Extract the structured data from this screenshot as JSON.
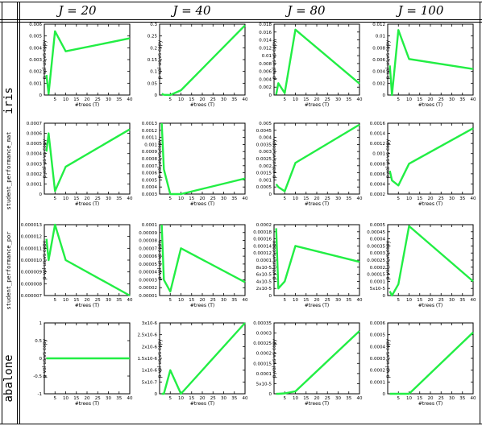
{
  "column_headers": [
    "J = 20",
    "J = 40",
    "J = 80",
    "J = 100"
  ],
  "row_labels": [
    "iris",
    "student_performance_mat",
    "student_performance_por",
    "abalone"
  ],
  "colors": {
    "line": "#22ee44",
    "frame": "#000000"
  },
  "chart_data": [
    {
      "type": "line",
      "row": 0,
      "col": 0,
      "xlabel": "#trees (T)",
      "ylabel": "p-val us vs copy",
      "xlim": [
        0,
        40
      ],
      "ylim": [
        0,
        0.006
      ],
      "yticks": [
        "0",
        "0.001",
        "0.002",
        "0.003",
        "0.004",
        "0.005",
        "0.006"
      ],
      "xticks": [
        "5",
        "10",
        "15",
        "20",
        "25",
        "30",
        "35",
        "40"
      ],
      "series": [
        {
          "x": [
            1,
            2,
            5,
            10,
            40
          ],
          "y": [
            0.0017,
            0.0001,
            0.0054,
            0.0037,
            0.0048
          ]
        }
      ]
    },
    {
      "type": "line",
      "row": 0,
      "col": 1,
      "xlabel": "#trees (T)",
      "ylabel": "p-val us vs copy",
      "xlim": [
        0,
        40
      ],
      "ylim": [
        0,
        0.3
      ],
      "yticks": [
        "0",
        "0.05",
        "0.1",
        "0.15",
        "0.2",
        "0.25",
        "0.3"
      ],
      "xticks": [
        "5",
        "10",
        "15",
        "20",
        "25",
        "30",
        "35",
        "40"
      ],
      "series": [
        {
          "x": [
            1,
            2,
            5,
            10,
            40
          ],
          "y": [
            0.005,
            0.001,
            0.0,
            0.02,
            0.295
          ]
        }
      ]
    },
    {
      "type": "line",
      "row": 0,
      "col": 2,
      "xlabel": "#trees (T)",
      "ylabel": "p-val us vs copy",
      "xlim": [
        0,
        40
      ],
      "ylim": [
        0,
        0.018
      ],
      "yticks": [
        "0",
        "0.002",
        "0.004",
        "0.006",
        "0.008",
        "0.01",
        "0.012",
        "0.014",
        "0.016",
        "0.018"
      ],
      "xticks": [
        "5",
        "10",
        "15",
        "20",
        "25",
        "30",
        "35",
        "40"
      ],
      "series": [
        {
          "x": [
            1,
            2,
            5,
            10,
            40
          ],
          "y": [
            0.0001,
            0.003,
            0.0005,
            0.0166,
            0.0029
          ]
        }
      ]
    },
    {
      "type": "line",
      "row": 0,
      "col": 3,
      "xlabel": "#trees (T)",
      "ylabel": "p-val us vs copy",
      "xlim": [
        0,
        40
      ],
      "ylim": [
        0,
        0.012
      ],
      "yticks": [
        "0",
        "0.002",
        "0.004",
        "0.006",
        "0.008",
        "0.01",
        "0.012"
      ],
      "xticks": [
        "5",
        "10",
        "15",
        "20",
        "25",
        "30",
        "35",
        "40"
      ],
      "series": [
        {
          "x": [
            1,
            2,
            5,
            10,
            40
          ],
          "y": [
            0.005,
            0.0,
            0.011,
            0.0061,
            0.0044
          ]
        }
      ]
    },
    {
      "type": "line",
      "row": 1,
      "col": 0,
      "xlabel": "#trees (T)",
      "ylabel": "p-val us vs copy",
      "xlim": [
        0,
        40
      ],
      "ylim": [
        0,
        0.0007
      ],
      "yticks": [
        "0",
        "0.0001",
        "0.0002",
        "0.0003",
        "0.0004",
        "0.0005",
        "0.0006",
        "0.0007"
      ],
      "xticks": [
        "5",
        "10",
        "15",
        "20",
        "25",
        "30",
        "35",
        "40"
      ],
      "series": [
        {
          "x": [
            1,
            2,
            5,
            10,
            40
          ],
          "y": [
            0.00042,
            0.0006,
            3e-05,
            0.00027,
            0.00064
          ]
        }
      ]
    },
    {
      "type": "line",
      "row": 1,
      "col": 1,
      "xlabel": "#trees (T)",
      "ylabel": "p-val us vs copy",
      "xlim": [
        0,
        40
      ],
      "ylim": [
        0.0003,
        0.0013
      ],
      "yticks": [
        "0.0003",
        "0.0004",
        "0.0005",
        "0.0006",
        "0.0007",
        "0.0008",
        "0.0009",
        "0.001",
        "0.0011",
        "0.0012",
        "0.0013"
      ],
      "xticks": [
        "5",
        "10",
        "15",
        "20",
        "25",
        "30",
        "35",
        "40"
      ],
      "series": [
        {
          "x": [
            1,
            2,
            5,
            10,
            40
          ],
          "y": [
            0.0013,
            0.00065,
            0.0003,
            0.0003,
            0.00052
          ]
        }
      ]
    },
    {
      "type": "line",
      "row": 1,
      "col": 2,
      "xlabel": "#trees (T)",
      "ylabel": "p-val us vs copy",
      "xlim": [
        0,
        40
      ],
      "ylim": [
        0,
        0.005
      ],
      "yticks": [
        "0",
        "0.0005",
        "0.001",
        "0.0015",
        "0.002",
        "0.0025",
        "0.003",
        "0.0035",
        "0.004",
        "0.0045",
        "0.005"
      ],
      "xticks": [
        "5",
        "10",
        "15",
        "20",
        "25",
        "30",
        "35",
        "40"
      ],
      "series": [
        {
          "x": [
            1,
            2,
            5,
            10,
            40
          ],
          "y": [
            0.0007,
            0.0005,
            0.0002,
            0.0022,
            0.0049
          ]
        }
      ]
    },
    {
      "type": "line",
      "row": 1,
      "col": 3,
      "xlabel": "#trees (T)",
      "ylabel": "p-val us vs copy",
      "xlim": [
        0,
        40
      ],
      "ylim": [
        0.0002,
        0.0016
      ],
      "yticks": [
        "0.0002",
        "0.0004",
        "0.0006",
        "0.0008",
        "0.001",
        "0.0012",
        "0.0014",
        "0.0016"
      ],
      "xticks": [
        "5",
        "10",
        "15",
        "20",
        "25",
        "30",
        "35",
        "40"
      ],
      "series": [
        {
          "x": [
            1,
            2,
            5,
            10,
            40
          ],
          "y": [
            0.00066,
            0.00047,
            0.00037,
            0.0008,
            0.0015
          ]
        }
      ]
    },
    {
      "type": "line",
      "row": 2,
      "col": 0,
      "xlabel": "#trees (T)",
      "ylabel": "p-val us vs copy",
      "xlim": [
        0,
        40
      ],
      "ylim": [
        7e-06,
        1.3e-05
      ],
      "yticks": [
        "0.000007",
        "0.000008",
        "0.000009",
        "0.000010",
        "0.000011",
        "0.000012",
        "0.000013"
      ],
      "xticks": [
        "5",
        "10",
        "15",
        "20",
        "25",
        "30",
        "35",
        "40"
      ],
      "series": [
        {
          "x": [
            1,
            2,
            5,
            10,
            40
          ],
          "y": [
            1.18e-05,
            1e-05,
            1.3e-05,
            1e-05,
            7e-06
          ]
        }
      ]
    },
    {
      "type": "line",
      "row": 2,
      "col": 1,
      "xlabel": "#trees (T)",
      "ylabel": "p-val us vs copy",
      "xlim": [
        0,
        40
      ],
      "ylim": [
        1e-05,
        0.0001
      ],
      "yticks": [
        "0.00001",
        "0.00002",
        "0.00003",
        "0.00004",
        "0.00005",
        "0.00006",
        "0.00007",
        "0.00008",
        "0.00009",
        "0.0001"
      ],
      "xticks": [
        "5",
        "10",
        "15",
        "20",
        "25",
        "30",
        "35",
        "40"
      ],
      "series": [
        {
          "x": [
            1,
            2,
            5,
            10,
            40
          ],
          "y": [
            0.0001,
            3e-05,
            1.5e-05,
            7e-05,
            2.7e-05
          ]
        }
      ]
    },
    {
      "type": "line",
      "row": 2,
      "col": 2,
      "xlabel": "#trees (T)",
      "ylabel": "p-val us vs copy",
      "xlim": [
        0,
        40
      ],
      "ylim": [
        0,
        0.0002
      ],
      "yticks": [
        "0",
        "2x10-5",
        "4x10-5",
        "6x10-5",
        "8x10-5",
        "0.0001",
        "0.00012",
        "0.00014",
        "0.00016",
        "0.00018",
        "0.0002"
      ],
      "xticks": [
        "5",
        "10",
        "15",
        "20",
        "25",
        "30",
        "35",
        "40"
      ],
      "series": [
        {
          "x": [
            1,
            2,
            5,
            10,
            40
          ],
          "y": [
            0.00019,
            2e-05,
            4e-05,
            0.00014,
            9.5e-05
          ]
        }
      ]
    },
    {
      "type": "line",
      "row": 2,
      "col": 3,
      "xlabel": "#trees (T)",
      "ylabel": "p-val us vs copy",
      "xlim": [
        0,
        40
      ],
      "ylim": [
        0,
        0.0005
      ],
      "yticks": [
        "0",
        "5x10-5",
        "0.0001",
        "0.00015",
        "0.0002",
        "0.00025",
        "0.0003",
        "0.00035",
        "0.0004",
        "0.00045",
        "0.0005"
      ],
      "xticks": [
        "5",
        "10",
        "15",
        "20",
        "25",
        "30",
        "35",
        "40"
      ],
      "series": [
        {
          "x": [
            1,
            2,
            5,
            10,
            40
          ],
          "y": [
            3e-05,
            0.0,
            8e-05,
            0.00049,
            0.0001
          ]
        }
      ]
    },
    {
      "type": "line",
      "row": 3,
      "col": 0,
      "xlabel": "#trees (T)",
      "ylabel": "p-val us vs copy",
      "xlim": [
        0,
        40
      ],
      "ylim": [
        -1,
        1
      ],
      "yticks": [
        "-1",
        "-0.5",
        "0",
        "0.5",
        "1"
      ],
      "xticks": [
        "5",
        "10",
        "15",
        "20",
        "25",
        "30",
        "35",
        "40"
      ],
      "series": [
        {
          "x": [
            1,
            2,
            5,
            10,
            40
          ],
          "y": [
            0,
            0,
            0,
            0,
            0
          ]
        }
      ]
    },
    {
      "type": "line",
      "row": 3,
      "col": 1,
      "xlabel": "#trees (T)",
      "ylabel": "p-val us vs copy",
      "xlim": [
        0,
        40
      ],
      "ylim": [
        0,
        3e-06
      ],
      "yticks": [
        "0",
        "5x10-7",
        "1x10-6",
        "1.5x10-6",
        "2x10-6",
        "2.5x10-6",
        "3x10-6"
      ],
      "xticks": [
        "5",
        "10",
        "15",
        "20",
        "25",
        "30",
        "35",
        "40"
      ],
      "series": [
        {
          "x": [
            1,
            2,
            5,
            10,
            40
          ],
          "y": [
            0,
            0,
            1e-06,
            0,
            3e-06
          ]
        }
      ]
    },
    {
      "type": "line",
      "row": 3,
      "col": 2,
      "xlabel": "#trees (T)",
      "ylabel": "p-val us vs copy",
      "xlim": [
        0,
        40
      ],
      "ylim": [
        0,
        0.00035
      ],
      "yticks": [
        "0",
        "5x10-5",
        "0.0001",
        "0.00015",
        "0.0002",
        "0.00025",
        "0.0003",
        "0.00035"
      ],
      "xticks": [
        "5",
        "10",
        "15",
        "20",
        "25",
        "30",
        "35",
        "40"
      ],
      "series": [
        {
          "x": [
            1,
            2,
            5,
            10,
            40
          ],
          "y": [
            0,
            0,
            2e-06,
            1.2e-05,
            0.00031
          ]
        }
      ]
    },
    {
      "type": "line",
      "row": 3,
      "col": 3,
      "xlabel": "#trees (T)",
      "ylabel": "p-val us vs copy",
      "xlim": [
        0,
        40
      ],
      "ylim": [
        0,
        0.0006
      ],
      "yticks": [
        "0",
        "0.0001",
        "0.0002",
        "0.0003",
        "0.0004",
        "0.0005",
        "0.0006"
      ],
      "xticks": [
        "5",
        "10",
        "15",
        "20",
        "25",
        "30",
        "35",
        "40"
      ],
      "series": [
        {
          "x": [
            1,
            2,
            5,
            10,
            40
          ],
          "y": [
            0,
            0,
            0,
            0,
            0.00052
          ]
        }
      ]
    }
  ]
}
